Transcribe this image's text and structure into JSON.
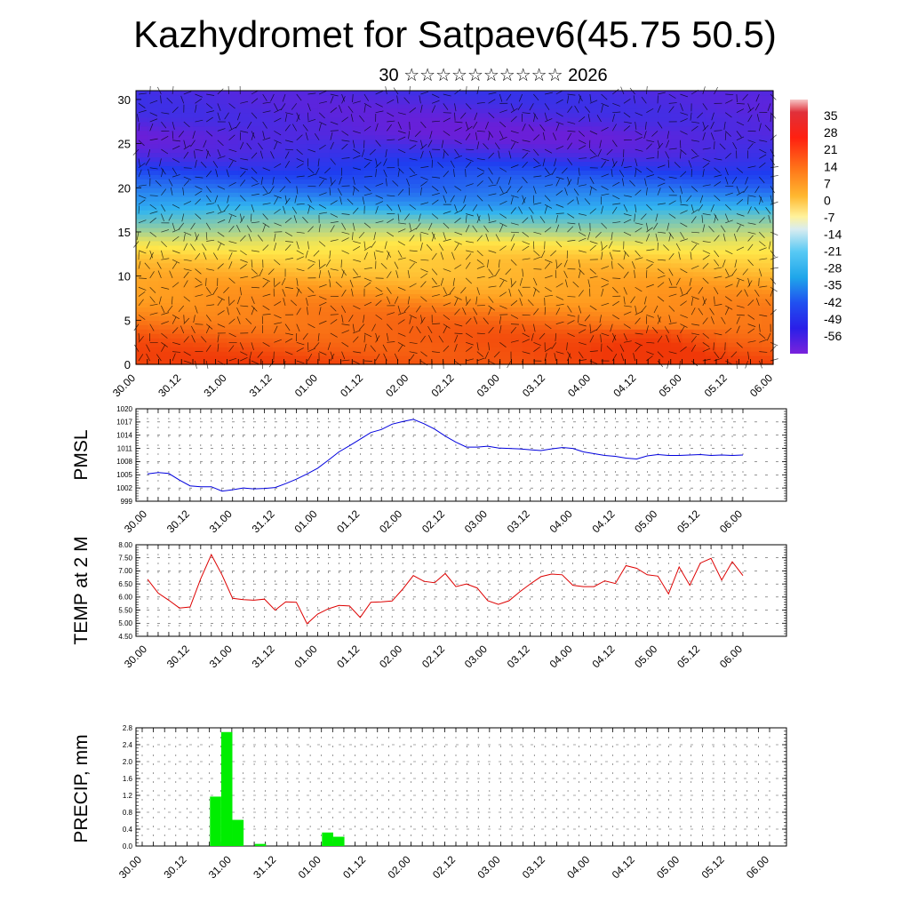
{
  "title": "Kazhydromet for Satpaev6(45.75 50.5)",
  "subtitle": "30 ☆☆☆☆☆☆☆☆☆☆ 2026",
  "time_labels": [
    "30.00",
    "30.12",
    "31.00",
    "31.12",
    "01.00",
    "01.12",
    "02.00",
    "02.12",
    "03.00",
    "03.12",
    "04.00",
    "04.12",
    "05.00",
    "05.12",
    "06.00"
  ],
  "chart_data": [
    {
      "type": "heatmap",
      "name": "cross-section",
      "y_ticks": [
        "0",
        "5",
        "10",
        "15",
        "20",
        "25",
        "30"
      ],
      "ylim": [
        0,
        31
      ],
      "colorbar_labels": [
        "35",
        "28",
        "21",
        "14",
        "7",
        "0",
        "-7",
        "-14",
        "-21",
        "-28",
        "-35",
        "-42",
        "-49",
        "-56"
      ],
      "colorbar_range": [
        -63,
        42
      ],
      "colors": {
        "cold": "#6a1fd8",
        "blue": "#1f3cf0",
        "cyan": "#31b5f0",
        "yellow": "#ffe84a",
        "orange": "#ff9a1e",
        "red": "#f03808"
      },
      "temperature_profile_km": [
        [
          0,
          20
        ],
        [
          3,
          17
        ],
        [
          6,
          12
        ],
        [
          9,
          6
        ],
        [
          12,
          0
        ],
        [
          14,
          -7
        ],
        [
          16,
          -20
        ],
        [
          18,
          -33
        ],
        [
          20,
          -42
        ],
        [
          22,
          -49
        ],
        [
          24,
          -55
        ],
        [
          26,
          -59
        ],
        [
          28,
          -57
        ],
        [
          31,
          -55
        ]
      ]
    },
    {
      "type": "line",
      "ylabel": "PMSL",
      "y_ticks": [
        "999",
        "1002",
        "1005",
        "1008",
        "1011",
        "1014",
        "1017",
        "1020"
      ],
      "ylim": [
        999,
        1020
      ],
      "color": "#0000dd",
      "x": [
        0,
        1,
        2,
        3,
        4,
        5,
        6,
        7,
        8,
        9,
        10,
        11,
        12,
        13,
        14,
        15,
        16,
        17,
        18,
        19,
        20,
        21,
        22,
        23,
        24,
        25,
        26,
        27,
        28,
        29,
        30,
        31,
        32,
        33,
        34,
        35,
        36,
        37,
        38,
        39,
        40,
        41,
        42,
        43,
        44,
        45,
        46,
        47,
        48,
        49,
        50,
        51,
        52,
        53,
        54,
        55,
        56
      ],
      "values": [
        1005.2,
        1005.5,
        1005.3,
        1003.8,
        1002.5,
        1002.3,
        1002.3,
        1001.3,
        1001.6,
        1002.0,
        1001.8,
        1001.9,
        1002.1,
        1003.0,
        1004.0,
        1005.2,
        1006.5,
        1008.3,
        1010.2,
        1011.6,
        1013.1,
        1014.6,
        1015.3,
        1016.5,
        1017.1,
        1017.6,
        1016.6,
        1015.4,
        1013.8,
        1012.4,
        1011.3,
        1011.3,
        1011.5,
        1011.1,
        1011.0,
        1010.9,
        1010.7,
        1010.5,
        1010.9,
        1011.2,
        1011.0,
        1010.2,
        1009.8,
        1009.4,
        1009.2,
        1008.8,
        1008.6,
        1009.3,
        1009.6,
        1009.4,
        1009.4,
        1009.5,
        1009.6,
        1009.4,
        1009.5,
        1009.4,
        1009.5
      ]
    },
    {
      "type": "line",
      "ylabel": "TEMP at 2 M",
      "y_ticks": [
        "4.50",
        "5.00",
        "5.50",
        "6.00",
        "6.50",
        "7.00",
        "7.50",
        "8.00"
      ],
      "ylim": [
        4.5,
        8.0
      ],
      "color": "#dd0000",
      "x": [
        0,
        1,
        2,
        3,
        4,
        5,
        6,
        7,
        8,
        9,
        10,
        11,
        12,
        13,
        14,
        15,
        16,
        17,
        18,
        19,
        20,
        21,
        22,
        23,
        24,
        25,
        26,
        27,
        28,
        29,
        30,
        31,
        32,
        33,
        34,
        35,
        36,
        37,
        38,
        39,
        40,
        41,
        42,
        43,
        44,
        45,
        46,
        47,
        48,
        49,
        50,
        51,
        52,
        53,
        54,
        55,
        56
      ],
      "values": [
        6.68,
        6.15,
        5.88,
        5.58,
        5.62,
        6.7,
        7.62,
        6.85,
        5.95,
        5.9,
        5.88,
        5.92,
        5.5,
        5.82,
        5.8,
        4.98,
        5.35,
        5.55,
        5.68,
        5.66,
        5.22,
        5.8,
        5.82,
        5.85,
        6.3,
        6.82,
        6.6,
        6.55,
        6.9,
        6.4,
        6.5,
        6.35,
        5.86,
        5.72,
        5.86,
        6.2,
        6.5,
        6.78,
        6.88,
        6.85,
        6.45,
        6.4,
        6.4,
        6.62,
        6.52,
        7.2,
        7.1,
        6.85,
        6.8,
        6.12,
        7.15,
        6.45,
        7.3,
        7.48,
        6.65,
        7.35,
        6.82
      ]
    },
    {
      "type": "bar",
      "ylabel": "PRECIP, mm",
      "y_ticks": [
        "0.0",
        "0.4",
        "0.8",
        "1.2",
        "1.6",
        "2.0",
        "2.4",
        "2.8"
      ],
      "ylim": [
        0,
        2.8
      ],
      "color": "#00ee00",
      "x": [
        6,
        7,
        8,
        10,
        16,
        17
      ],
      "values": [
        1.17,
        2.7,
        0.62,
        0.05,
        0.32,
        0.22
      ]
    }
  ]
}
